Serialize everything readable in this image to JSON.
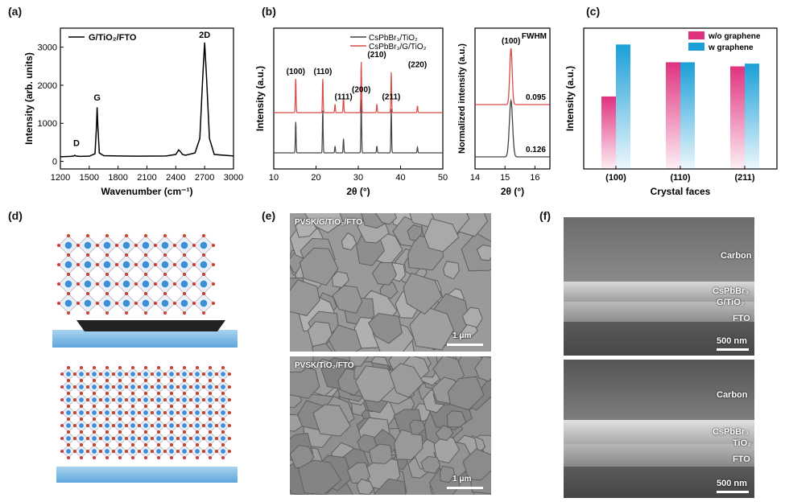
{
  "labels": {
    "a": "(a)",
    "b": "(b)",
    "c": "(c)",
    "d": "(d)",
    "e": "(e)",
    "f": "(f)"
  },
  "chart_data": [
    {
      "id": "a",
      "type": "line",
      "xlabel": "Wavenumber (cm⁻¹)",
      "ylabel": "Intensity (arb. units)",
      "xlim": [
        1200,
        3000
      ],
      "ylim": [
        -200,
        3500
      ],
      "xticks": [
        1200,
        1500,
        1800,
        2100,
        2400,
        2700,
        3000
      ],
      "yticks": [
        0,
        1000,
        2000,
        3000
      ],
      "legend": "G/TiO₂/FTO",
      "annotations": [
        {
          "text": "D",
          "x": 1350
        },
        {
          "text": "G",
          "x": 1580
        },
        {
          "text": "2D",
          "x": 2700
        }
      ],
      "series": [
        {
          "name": "G/TiO₂/FTO",
          "x": [
            1200,
            1300,
            1340,
            1350,
            1360,
            1400,
            1500,
            1560,
            1575,
            1582,
            1590,
            1605,
            1650,
            1800,
            2000,
            2300,
            2400,
            2430,
            2450,
            2470,
            2500,
            2600,
            2650,
            2680,
            2700,
            2720,
            2750,
            2800,
            3000
          ],
          "y": [
            120,
            130,
            140,
            160,
            140,
            130,
            135,
            200,
            900,
            1420,
            900,
            220,
            150,
            140,
            135,
            140,
            180,
            300,
            250,
            180,
            160,
            220,
            600,
            2200,
            3120,
            2200,
            600,
            180,
            140
          ]
        }
      ]
    },
    {
      "id": "b-left",
      "type": "line",
      "xlabel": "2θ (°)",
      "ylabel": "Intensity (a.u.)",
      "xlim": [
        10,
        50
      ],
      "xticks": [
        10,
        20,
        30,
        40,
        50
      ],
      "peak_labels": [
        {
          "text": "(100)",
          "x": 15.2
        },
        {
          "text": "(110)",
          "x": 21.6
        },
        {
          "text": "(111)",
          "x": 26.5
        },
        {
          "text": "(200)",
          "x": 30.7
        },
        {
          "text": "(210)",
          "x": 34.4
        },
        {
          "text": "(211)",
          "x": 37.8
        },
        {
          "text": "(220)",
          "x": 44.0
        }
      ],
      "series": [
        {
          "name": "CsPbBr₃/TiO₂",
          "color": "#444444",
          "peaks": [
            [
              15.2,
              0.55
            ],
            [
              21.6,
              0.75
            ],
            [
              24.5,
              0.12
            ],
            [
              26.5,
              0.25
            ],
            [
              30.7,
              0.95
            ],
            [
              34.4,
              0.12
            ],
            [
              37.8,
              0.78
            ],
            [
              44.0,
              0.1
            ]
          ]
        },
        {
          "name": "CsPbBr₃/G/TiO₂",
          "color": "#d94a45",
          "peaks": [
            [
              15.2,
              0.6
            ],
            [
              21.6,
              0.6
            ],
            [
              24.5,
              0.15
            ],
            [
              26.5,
              0.28
            ],
            [
              30.7,
              0.9
            ],
            [
              34.4,
              0.15
            ],
            [
              37.8,
              0.72
            ],
            [
              44.0,
              0.12
            ]
          ]
        }
      ]
    },
    {
      "id": "b-right",
      "type": "line",
      "title": "FWHM",
      "xlabel": "2θ (°)",
      "ylabel": "Normalized intensity (a.u.)",
      "xlim": [
        14,
        16.5
      ],
      "xticks": [
        14,
        15,
        16
      ],
      "peak_label": "(100)",
      "series": [
        {
          "name": "CsPbBr₃/G/TiO₂",
          "color": "#d94a45",
          "center": 15.2,
          "fwhm": 0.095,
          "label": "0.095"
        },
        {
          "name": "CsPbBr₃/TiO₂",
          "color": "#444444",
          "center": 15.2,
          "fwhm": 0.126,
          "label": "0.126"
        }
      ]
    },
    {
      "id": "c",
      "type": "bar",
      "xlabel": "Crystal faces",
      "ylabel": "Intensity (a.u.)",
      "categories": [
        "(100)",
        "(110)",
        "(211)"
      ],
      "series": [
        {
          "name": "w/o graphene",
          "color": "#e0327f",
          "values": [
            0.53,
            0.78,
            0.75
          ]
        },
        {
          "name": "w graphene",
          "color": "#1a9fd8",
          "values": [
            0.91,
            0.78,
            0.77
          ]
        }
      ],
      "ylim": [
        0,
        1
      ],
      "legend_position": "top-right"
    }
  ],
  "images": {
    "e_top": "PVSK/G/TiO₂/FTO",
    "e_bottom": "PVSK/TiO₂/FTO",
    "e_scale": "1 μm",
    "f_top": [
      "Carbon",
      "CsPbBr₃",
      "G/TiO₂",
      "FTO"
    ],
    "f_bottom": [
      "Carbon",
      "CsPbBr₃",
      "TiO₂",
      "FTO"
    ],
    "f_scale": "500 nm"
  },
  "colors": {
    "red": "#d94a45",
    "dark": "#444444",
    "pink": "#e0327f",
    "blue": "#1a9fd8"
  }
}
